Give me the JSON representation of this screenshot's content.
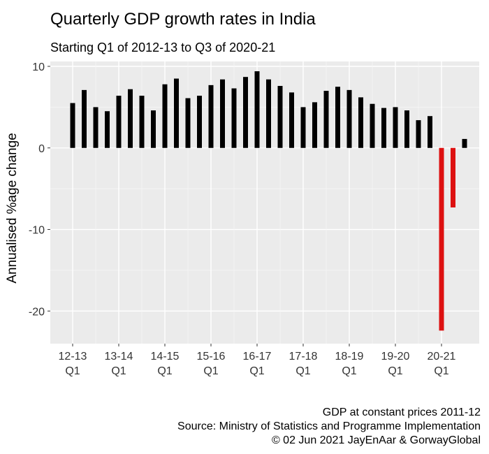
{
  "chart_data": {
    "type": "bar",
    "title": "Quarterly GDP growth rates in India",
    "subtitle": "Starting Q1 of 2012-13 to Q3 of 2020-21",
    "xlabel": "",
    "ylabel": "Annualised %age change",
    "ylim": [
      -24,
      10.6
    ],
    "y_ticks": [
      10,
      0,
      -10,
      -20
    ],
    "grid": true,
    "x_tick_labels": [
      {
        "line1": "12-13",
        "line2": "Q1",
        "index": 0
      },
      {
        "line1": "13-14",
        "line2": "Q1",
        "index": 4
      },
      {
        "line1": "14-15",
        "line2": "Q1",
        "index": 8
      },
      {
        "line1": "15-16",
        "line2": "Q1",
        "index": 12
      },
      {
        "line1": "16-17",
        "line2": "Q1",
        "index": 16
      },
      {
        "line1": "17-18",
        "line2": "Q1",
        "index": 20
      },
      {
        "line1": "18-19",
        "line2": "Q1",
        "index": 24
      },
      {
        "line1": "19-20",
        "line2": "Q1",
        "index": 28
      },
      {
        "line1": "20-21",
        "line2": "Q1",
        "index": 32
      }
    ],
    "values": [
      5.5,
      7.1,
      5.0,
      4.5,
      6.4,
      7.2,
      6.4,
      4.6,
      7.8,
      8.5,
      6.1,
      6.4,
      7.7,
      8.4,
      7.3,
      8.7,
      9.4,
      8.4,
      7.6,
      6.8,
      5.0,
      5.6,
      7.0,
      7.5,
      7.1,
      6.2,
      5.4,
      4.9,
      5.0,
      4.6,
      3.4,
      3.9,
      -22.4,
      -7.3,
      1.1
    ],
    "colors": {
      "positive": "#000000",
      "negative": "#dd1111"
    }
  },
  "captions": [
    "GDP at constant prices 2011-12",
    "Source: Ministry of Statistics and Programme Implementation",
    "© 02 Jun 2021 JayEnAar & GorwayGlobal"
  ]
}
